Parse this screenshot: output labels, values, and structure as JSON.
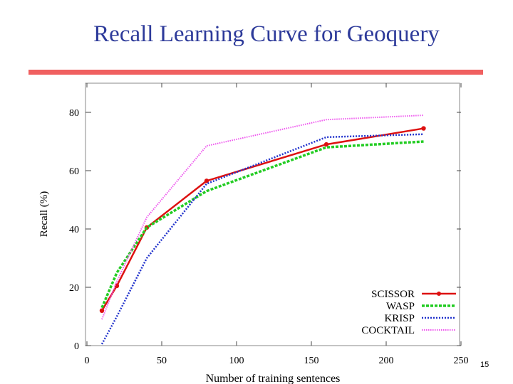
{
  "slide": {
    "title": "Recall Learning Curve for Geoquery",
    "page_number": "15",
    "accent_color": "#f06060",
    "title_color": "#2d3a9a"
  },
  "chart_data": {
    "type": "line",
    "title": "",
    "xlabel": "Number of training sentences",
    "ylabel": "Recall (%)",
    "xlim": [
      0,
      250
    ],
    "ylim": [
      0,
      90
    ],
    "x_ticks": [
      0,
      50,
      100,
      150,
      200,
      250
    ],
    "y_ticks": [
      0,
      20,
      40,
      60,
      80
    ],
    "grid": false,
    "legend_position": "bottom-right",
    "series": [
      {
        "name": "SCISSOR",
        "color": "#dd1111",
        "style": "solid-markers",
        "x": [
          10,
          20,
          40,
          80,
          160,
          225
        ],
        "values": [
          12,
          20.5,
          40.5,
          56.5,
          69,
          74.5
        ]
      },
      {
        "name": "WASP",
        "color": "#22cc22",
        "style": "dashed",
        "x": [
          10,
          20,
          40,
          80,
          160,
          225
        ],
        "values": [
          13,
          25,
          40.5,
          53,
          68,
          70
        ]
      },
      {
        "name": "KRISP",
        "color": "#2233cc",
        "style": "dotted",
        "x": [
          10,
          20,
          40,
          80,
          160,
          225
        ],
        "values": [
          0.5,
          10,
          30,
          55.5,
          71.5,
          72.5
        ]
      },
      {
        "name": "COCKTAIL",
        "color": "#ee55ee",
        "style": "fine-dotted",
        "x": [
          10,
          20,
          40,
          80,
          160,
          225
        ],
        "values": [
          9,
          22,
          44,
          68.5,
          77.5,
          79
        ]
      }
    ]
  }
}
